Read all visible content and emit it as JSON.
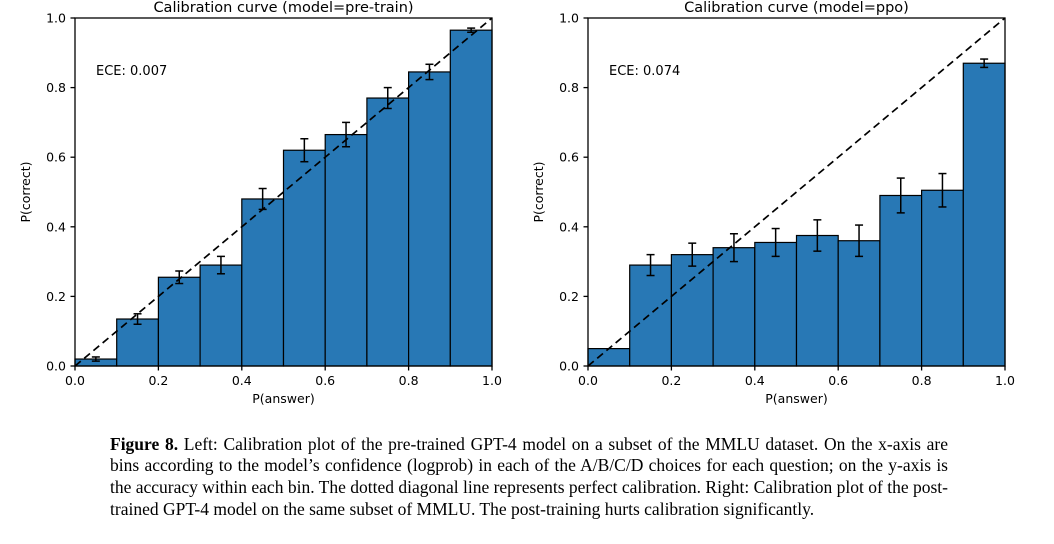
{
  "figure": {
    "caption_label": "Figure 8.",
    "caption_text": " Left: Calibration plot of the pre-trained GPT-4 model on a subset of the MMLU dataset. On the x-axis are bins according to the model’s confidence (logprob) in each of the A/B/C/D choices for each question; on the y-axis is the accuracy within each bin. The dotted diagonal line represents perfect calibration. Right: Calibration plot of the post-trained GPT-4 model on the same subset of MMLU. The post-training hurts calibration significantly."
  },
  "colors": {
    "bar_fill": "#2878b5",
    "bar_edge": "#000000",
    "diagonal": "#000000",
    "error_bar": "#000000",
    "axis": "#000000",
    "text": "#000000"
  },
  "chart_data": [
    {
      "type": "bar",
      "title": "Calibration curve (model=pre-train)",
      "annotation": "ECE: 0.007",
      "xlabel": "P(answer)",
      "ylabel": "P(correct)",
      "xlim": [
        0.0,
        1.0
      ],
      "ylim": [
        0.0,
        1.0
      ],
      "xticks": [
        0.0,
        0.2,
        0.4,
        0.6,
        0.8,
        1.0
      ],
      "yticks": [
        0.0,
        0.2,
        0.4,
        0.6,
        0.8,
        1.0
      ],
      "grid": false,
      "legend": "none",
      "diagonal_reference_line": true,
      "bin_edges": [
        0.0,
        0.1,
        0.2,
        0.3,
        0.4,
        0.5,
        0.6,
        0.7,
        0.8,
        0.9,
        1.0
      ],
      "values": [
        0.02,
        0.135,
        0.255,
        0.29,
        0.48,
        0.62,
        0.665,
        0.77,
        0.845,
        0.965
      ],
      "errors": [
        0.006,
        0.015,
        0.018,
        0.025,
        0.03,
        0.033,
        0.035,
        0.03,
        0.022,
        0.006
      ]
    },
    {
      "type": "bar",
      "title": "Calibration curve (model=ppo)",
      "annotation": "ECE: 0.074",
      "xlabel": "P(answer)",
      "ylabel": "P(correct)",
      "xlim": [
        0.0,
        1.0
      ],
      "ylim": [
        0.0,
        1.0
      ],
      "xticks": [
        0.0,
        0.2,
        0.4,
        0.6,
        0.8,
        1.0
      ],
      "yticks": [
        0.0,
        0.2,
        0.4,
        0.6,
        0.8,
        1.0
      ],
      "grid": false,
      "legend": "none",
      "diagonal_reference_line": true,
      "bin_edges": [
        0.0,
        0.1,
        0.2,
        0.3,
        0.4,
        0.5,
        0.6,
        0.7,
        0.8,
        0.9,
        1.0
      ],
      "values": [
        0.05,
        0.29,
        0.32,
        0.34,
        0.355,
        0.375,
        0.36,
        0.49,
        0.505,
        0.87
      ],
      "errors": [
        0.0,
        0.03,
        0.033,
        0.04,
        0.04,
        0.045,
        0.045,
        0.05,
        0.048,
        0.012
      ]
    }
  ]
}
